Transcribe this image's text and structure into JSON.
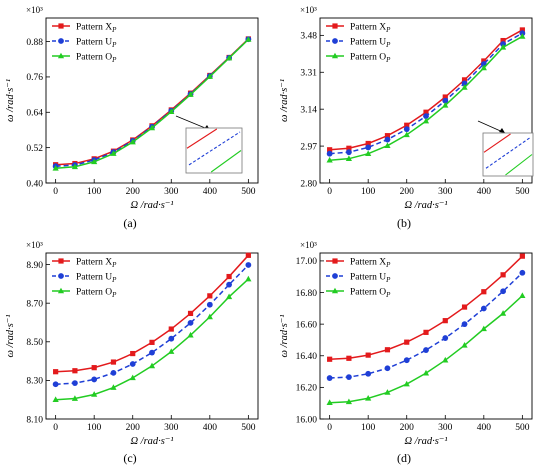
{
  "chart_data": [
    {
      "type": "line",
      "caption": "(a)",
      "xlabel": "Ω /rad·s⁻¹",
      "ylabel": "ω /rad·s⁻¹",
      "y_multiplier": "×10³",
      "x": [
        0,
        50,
        100,
        150,
        200,
        250,
        300,
        350,
        400,
        450,
        500
      ],
      "xlim": [
        -25,
        525
      ],
      "ylim": [
        0.4,
        0.96
      ],
      "xticks": [
        "0",
        "100",
        "200",
        "300",
        "400",
        "500"
      ],
      "yticks": [
        "0.40",
        "0.52",
        "0.64",
        "0.76",
        "0.88"
      ],
      "legend_position": "top-left",
      "inset_zoom": true,
      "series": [
        {
          "name": "Pattern X",
          "sub": "P",
          "color": "#e31a1c",
          "dash": "solid",
          "marker": "square",
          "values": [
            0.462,
            0.466,
            0.482,
            0.508,
            0.546,
            0.594,
            0.648,
            0.705,
            0.765,
            0.826,
            0.889
          ]
        },
        {
          "name": "Pattern U",
          "sub": "P",
          "color": "#1f3fd6",
          "dash": "dashed",
          "marker": "circle",
          "values": [
            0.457,
            0.461,
            0.478,
            0.505,
            0.543,
            0.591,
            0.645,
            0.702,
            0.763,
            0.825,
            0.888
          ]
        },
        {
          "name": "Pattern O",
          "sub": "P",
          "color": "#22cc22",
          "dash": "solid",
          "marker": "triangle",
          "values": [
            0.45,
            0.455,
            0.472,
            0.5,
            0.539,
            0.587,
            0.642,
            0.7,
            0.761,
            0.824,
            0.887
          ]
        }
      ]
    },
    {
      "type": "line",
      "caption": "(b)",
      "xlabel": "Ω /rad·s⁻¹",
      "ylabel": "ω /rad·s⁻¹",
      "y_multiplier": "×10³",
      "x": [
        0,
        50,
        100,
        150,
        200,
        250,
        300,
        350,
        400,
        450,
        500
      ],
      "xlim": [
        -25,
        525
      ],
      "ylim": [
        2.8,
        3.56
      ],
      "xticks": [
        "0",
        "100",
        "200",
        "300",
        "400",
        "500"
      ],
      "yticks": [
        "2.80",
        "2.97",
        "3.14",
        "3.31",
        "3.48"
      ],
      "legend_position": "top-left",
      "inset_zoom": true,
      "series": [
        {
          "name": "Pattern X",
          "sub": "P",
          "color": "#e31a1c",
          "dash": "solid",
          "marker": "square",
          "values": [
            2.953,
            2.96,
            2.982,
            3.018,
            3.066,
            3.126,
            3.196,
            3.275,
            3.362,
            3.456,
            3.505
          ]
        },
        {
          "name": "Pattern U",
          "sub": "P",
          "color": "#1f3fd6",
          "dash": "dashed",
          "marker": "circle",
          "values": [
            2.935,
            2.942,
            2.964,
            3.0,
            3.048,
            3.108,
            3.179,
            3.259,
            3.348,
            3.44,
            3.49
          ]
        },
        {
          "name": "Pattern O",
          "sub": "P",
          "color": "#22cc22",
          "dash": "solid",
          "marker": "triangle",
          "values": [
            2.905,
            2.912,
            2.935,
            2.972,
            3.022,
            3.085,
            3.158,
            3.24,
            3.33,
            3.425,
            3.475
          ]
        }
      ]
    },
    {
      "type": "line",
      "caption": "(c)",
      "xlabel": "Ω /rad·s⁻¹",
      "ylabel": "ω /rad·s⁻¹",
      "y_multiplier": "×10³",
      "x": [
        0,
        50,
        100,
        150,
        200,
        250,
        300,
        350,
        400,
        450,
        500
      ],
      "xlim": [
        -25,
        525
      ],
      "ylim": [
        8.1,
        8.96
      ],
      "xticks": [
        "0",
        "100",
        "200",
        "300",
        "400",
        "500"
      ],
      "yticks": [
        "8.10",
        "8.30",
        "8.50",
        "8.70",
        "8.90"
      ],
      "legend_position": "top-left",
      "inset_zoom": false,
      "series": [
        {
          "name": "Pattern X",
          "sub": "P",
          "color": "#e31a1c",
          "dash": "solid",
          "marker": "square",
          "values": [
            8.345,
            8.35,
            8.366,
            8.395,
            8.439,
            8.497,
            8.566,
            8.647,
            8.738,
            8.838,
            8.948
          ]
        },
        {
          "name": "Pattern U",
          "sub": "P",
          "color": "#1f3fd6",
          "dash": "dashed",
          "marker": "circle",
          "values": [
            8.28,
            8.286,
            8.305,
            8.339,
            8.385,
            8.444,
            8.516,
            8.598,
            8.692,
            8.796,
            8.898
          ]
        },
        {
          "name": "Pattern O",
          "sub": "P",
          "color": "#22cc22",
          "dash": "solid",
          "marker": "triangle",
          "values": [
            8.2,
            8.206,
            8.227,
            8.263,
            8.313,
            8.375,
            8.449,
            8.534,
            8.629,
            8.733,
            8.825
          ]
        }
      ]
    },
    {
      "type": "line",
      "caption": "(d)",
      "xlabel": "Ω /rad·s⁻¹",
      "ylabel": "ω /rad·s⁻¹",
      "y_multiplier": "×10³",
      "x": [
        0,
        50,
        100,
        150,
        200,
        250,
        300,
        350,
        400,
        450,
        500
      ],
      "xlim": [
        -25,
        525
      ],
      "ylim": [
        16.0,
        17.05
      ],
      "xticks": [
        "0",
        "100",
        "200",
        "300",
        "400",
        "500"
      ],
      "yticks": [
        "16.00",
        "16.20",
        "16.40",
        "16.60",
        "16.80",
        "17.00"
      ],
      "legend_position": "top-left",
      "inset_zoom": false,
      "series": [
        {
          "name": "Pattern X",
          "sub": "P",
          "color": "#e31a1c",
          "dash": "solid",
          "marker": "square",
          "values": [
            16.378,
            16.384,
            16.404,
            16.438,
            16.486,
            16.548,
            16.622,
            16.708,
            16.805,
            16.912,
            17.03
          ]
        },
        {
          "name": "Pattern U",
          "sub": "P",
          "color": "#1f3fd6",
          "dash": "dashed",
          "marker": "circle",
          "values": [
            16.259,
            16.265,
            16.286,
            16.321,
            16.372,
            16.436,
            16.512,
            16.6,
            16.699,
            16.808,
            16.925
          ]
        },
        {
          "name": "Pattern O",
          "sub": "P",
          "color": "#22cc22",
          "dash": "solid",
          "marker": "triangle",
          "values": [
            16.103,
            16.109,
            16.131,
            16.168,
            16.221,
            16.29,
            16.372,
            16.466,
            16.57,
            16.668,
            16.78
          ]
        }
      ]
    }
  ]
}
